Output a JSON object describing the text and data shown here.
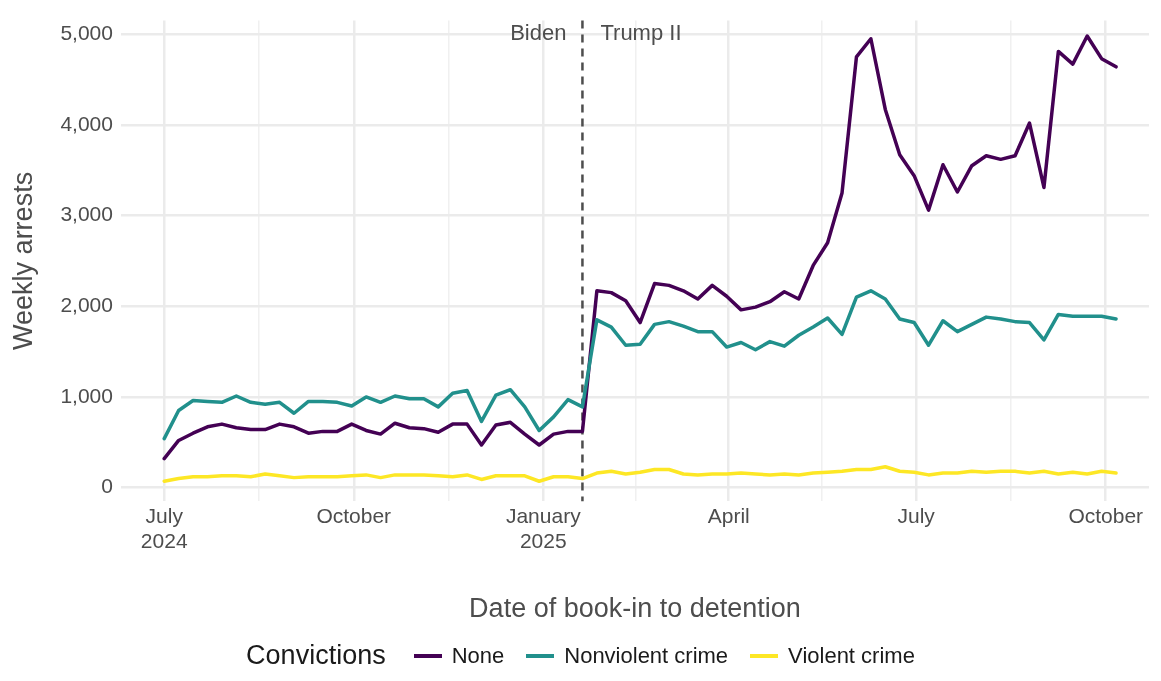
{
  "chart_data": {
    "type": "line",
    "xlabel": "Date of book-in to detention",
    "ylabel": "Weekly arrests",
    "legend_title": "Convictions",
    "legend": "bottom",
    "grid": true,
    "marker": "none",
    "line_style": "solid",
    "x": [
      "2024-07-01",
      "2024-07-08",
      "2024-07-15",
      "2024-07-22",
      "2024-07-29",
      "2024-08-05",
      "2024-08-12",
      "2024-08-19",
      "2024-08-26",
      "2024-09-02",
      "2024-09-09",
      "2024-09-16",
      "2024-09-23",
      "2024-09-30",
      "2024-10-07",
      "2024-10-14",
      "2024-10-21",
      "2024-10-28",
      "2024-11-04",
      "2024-11-11",
      "2024-11-18",
      "2024-11-25",
      "2024-12-02",
      "2024-12-09",
      "2024-12-16",
      "2024-12-23",
      "2024-12-30",
      "2025-01-06",
      "2025-01-13",
      "2025-01-20",
      "2025-01-27",
      "2025-02-03",
      "2025-02-10",
      "2025-02-17",
      "2025-02-24",
      "2025-03-03",
      "2025-03-10",
      "2025-03-17",
      "2025-03-24",
      "2025-03-31",
      "2025-04-07",
      "2025-04-14",
      "2025-04-21",
      "2025-04-28",
      "2025-05-05",
      "2025-05-12",
      "2025-05-19",
      "2025-05-26",
      "2025-06-02",
      "2025-06-09",
      "2025-06-16",
      "2025-06-23",
      "2025-06-30",
      "2025-07-07",
      "2025-07-14",
      "2025-07-21",
      "2025-07-28",
      "2025-08-04",
      "2025-08-11",
      "2025-08-18",
      "2025-08-25",
      "2025-09-01",
      "2025-09-08",
      "2025-09-15",
      "2025-09-22",
      "2025-09-29",
      "2025-10-06"
    ],
    "xlim": [
      "2024-06-10",
      "2025-10-22"
    ],
    "xticks": [
      {
        "value": "2024-07-01",
        "label": "July\n2024"
      },
      {
        "value": "2024-08-16",
        "label": null
      },
      {
        "value": "2024-10-01",
        "label": "October"
      },
      {
        "value": "2024-11-16",
        "label": null
      },
      {
        "value": "2025-01-01",
        "label": "January\n2025"
      },
      {
        "value": "2025-02-15",
        "label": null
      },
      {
        "value": "2025-04-01",
        "label": "April"
      },
      {
        "value": "2025-05-16",
        "label": null
      },
      {
        "value": "2025-07-01",
        "label": "July"
      },
      {
        "value": "2025-08-16",
        "label": null
      },
      {
        "value": "2025-10-01",
        "label": "October"
      }
    ],
    "ylim": [
      -150,
      5150
    ],
    "yticks": [
      {
        "value": 0,
        "label": "0"
      },
      {
        "value": 1000,
        "label": "1,000"
      },
      {
        "value": 2000,
        "label": "2,000"
      },
      {
        "value": 3000,
        "label": "3,000"
      },
      {
        "value": 4000,
        "label": "4,000"
      },
      {
        "value": 5000,
        "label": "5,000"
      }
    ],
    "ref_lines": [
      {
        "axis": "x",
        "value": "2025-01-20",
        "color": "#4d4d4d",
        "line_style": "dashed"
      }
    ],
    "annotations": [
      {
        "text": "Biden",
        "x": "2025-01-20",
        "y": 5000
      },
      {
        "text": "Trump II",
        "x": "2025-01-20",
        "y": 5000
      }
    ],
    "series": [
      {
        "name": "None",
        "color": "#440154",
        "values": [
          320,
          520,
          600,
          670,
          700,
          660,
          640,
          640,
          700,
          670,
          600,
          620,
          620,
          700,
          630,
          590,
          710,
          660,
          650,
          610,
          700,
          700,
          470,
          690,
          720,
          590,
          470,
          590,
          620,
          620,
          2170,
          2150,
          2060,
          1820,
          2250,
          2230,
          2170,
          2080,
          2230,
          2110,
          1960,
          1990,
          2050,
          2160,
          2080,
          2450,
          2700,
          3250,
          4750,
          4950,
          4170,
          3670,
          3440,
          3060,
          3560,
          3260,
          3550,
          3660,
          3620,
          3660,
          4020,
          3310,
          4810,
          4670,
          4980,
          4730,
          4640
        ]
      },
      {
        "name": "Nonviolent crime",
        "color": "#21908c",
        "values": [
          540,
          850,
          960,
          950,
          940,
          1010,
          940,
          920,
          940,
          820,
          950,
          950,
          940,
          900,
          1000,
          940,
          1010,
          980,
          980,
          890,
          1040,
          1070,
          730,
          1020,
          1080,
          890,
          630,
          780,
          970,
          890,
          1850,
          1770,
          1570,
          1580,
          1800,
          1830,
          1780,
          1720,
          1720,
          1550,
          1600,
          1520,
          1610,
          1560,
          1680,
          1770,
          1870,
          1690,
          2100,
          2170,
          2080,
          1860,
          1820,
          1570,
          1840,
          1720,
          1800,
          1880,
          1860,
          1830,
          1820,
          1630,
          1910,
          1890,
          1890,
          1890,
          1860
        ]
      },
      {
        "name": "Violent crime",
        "color": "#fde725",
        "values": [
          70,
          100,
          120,
          120,
          130,
          130,
          120,
          150,
          130,
          110,
          120,
          120,
          120,
          130,
          140,
          110,
          140,
          140,
          140,
          130,
          120,
          140,
          90,
          130,
          130,
          130,
          70,
          120,
          120,
          100,
          160,
          180,
          150,
          170,
          200,
          200,
          150,
          140,
          150,
          150,
          160,
          150,
          140,
          150,
          140,
          160,
          170,
          180,
          200,
          200,
          230,
          180,
          170,
          140,
          160,
          160,
          180,
          170,
          180,
          180,
          160,
          180,
          150,
          170,
          150,
          180,
          160
        ]
      }
    ]
  }
}
